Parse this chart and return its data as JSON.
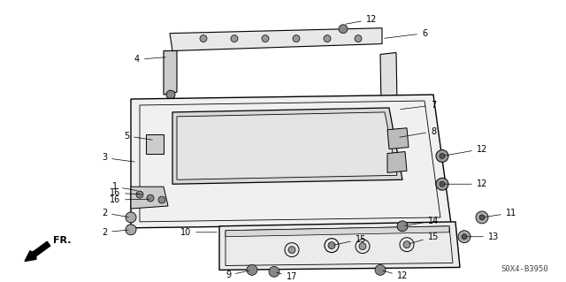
{
  "bg_color": "#ffffff",
  "lc": "#000000",
  "diagram_code": "S0X4-B3950",
  "fig_w": 6.4,
  "fig_h": 3.19,
  "dpi": 100
}
